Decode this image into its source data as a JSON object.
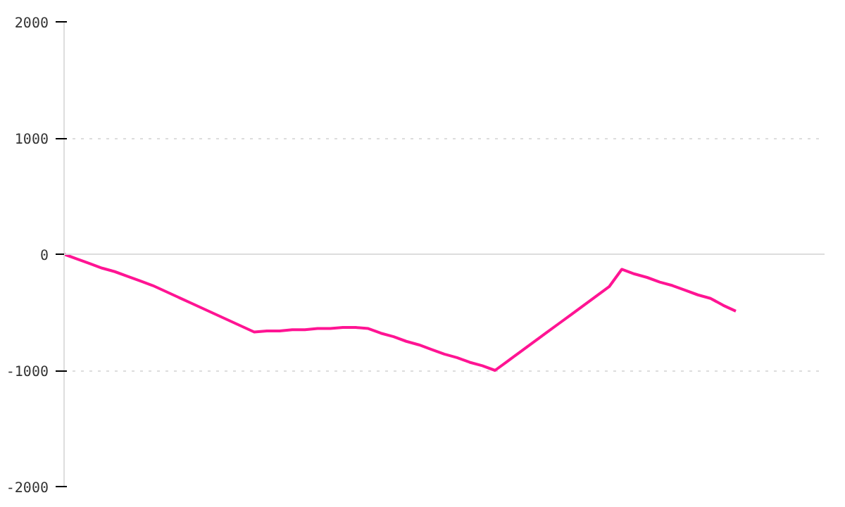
{
  "chart_data": {
    "type": "line",
    "categories": [
      null,
      null,
      null,
      null,
      null,
      null,
      null,
      null,
      null,
      null,
      null,
      null,
      null,
      null,
      null,
      null,
      null,
      null,
      null,
      null,
      null,
      null,
      null,
      null,
      null,
      null,
      null,
      null,
      null,
      null,
      null,
      null,
      null,
      null,
      null,
      null,
      null,
      null,
      null,
      null,
      null,
      null,
      null,
      null,
      null,
      null,
      null,
      null,
      null,
      null,
      null,
      null,
      null,
      null,
      null,
      null,
      null,
      null,
      null,
      null,
      null
    ],
    "series": [
      {
        "color": "#ff1493",
        "values": [
          0,
          -40,
          -80,
          -120,
          -150,
          -190,
          -230,
          -270,
          -320,
          -370,
          -420,
          -470,
          -520,
          -570,
          -620,
          -670,
          -660,
          -660,
          -650,
          -650,
          -640,
          -640,
          -630,
          -630,
          -640,
          -680,
          -710,
          -750,
          -780,
          -820,
          -860,
          -890,
          -930,
          -960,
          -1000,
          -920,
          -840,
          -760,
          -680,
          -600,
          -520,
          -440,
          -360,
          -280,
          -130,
          -170,
          -200,
          -240,
          -270,
          -310,
          -350,
          -380,
          -440,
          -490,
          null,
          null,
          null,
          null,
          null,
          null,
          null
        ]
      }
    ],
    "ylim": [
      -2000,
      2000
    ],
    "yticks": [
      -2000,
      -1000,
      0,
      1000,
      2000
    ],
    "tick_labels": "y",
    "grid": "y",
    "marker": "none",
    "line_style": "solid"
  }
}
